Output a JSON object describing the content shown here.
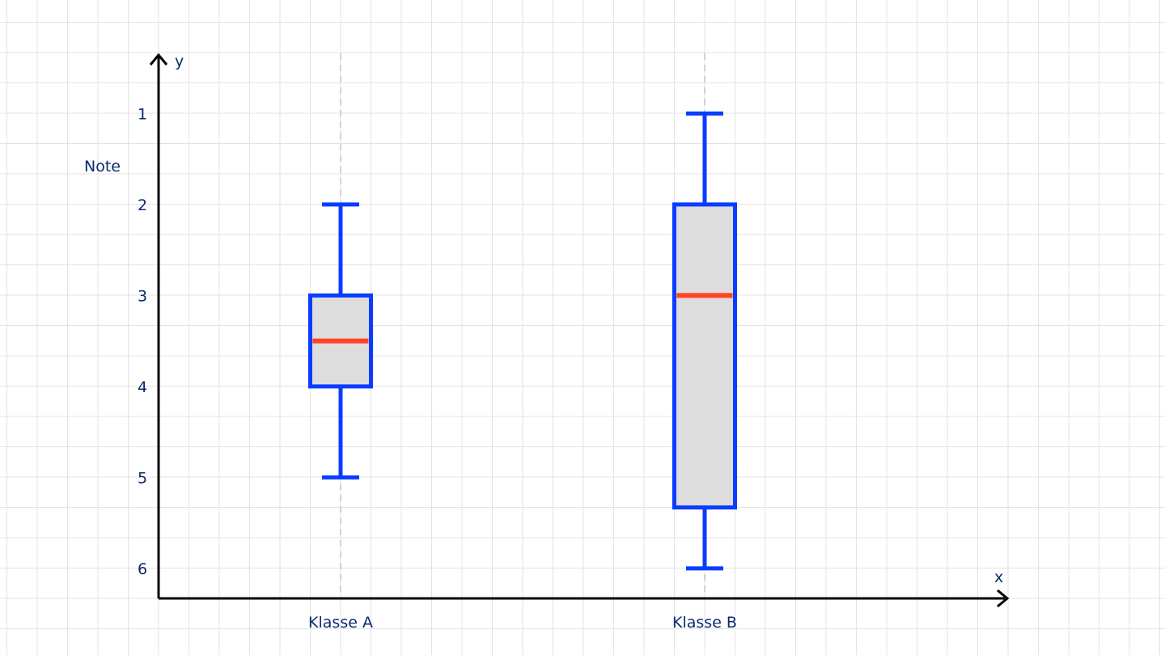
{
  "chart_data": {
    "type": "boxplot",
    "ylabel": "Note",
    "x_axis_letter": "x",
    "y_axis_letter": "y",
    "y_ticks": [
      1,
      2,
      3,
      4,
      5,
      6
    ],
    "ylim": [
      0.4,
      6.33
    ],
    "y_inverted": true,
    "categories": [
      "Klasse A",
      "Klasse B"
    ],
    "boxes": [
      {
        "category": "Klasse A",
        "min": 2,
        "q1": 3,
        "median": 3.5,
        "q3": 4,
        "max": 5
      },
      {
        "category": "Klasse B",
        "min": 1,
        "q1": 2,
        "median": 3,
        "q3": 5.33,
        "max": 6
      }
    ],
    "colors": {
      "box_outline": "#0a3cff",
      "median": "#ff4422",
      "box_fill": "#dddddd",
      "axis": "#000000",
      "text": "#0b2a6f"
    }
  }
}
